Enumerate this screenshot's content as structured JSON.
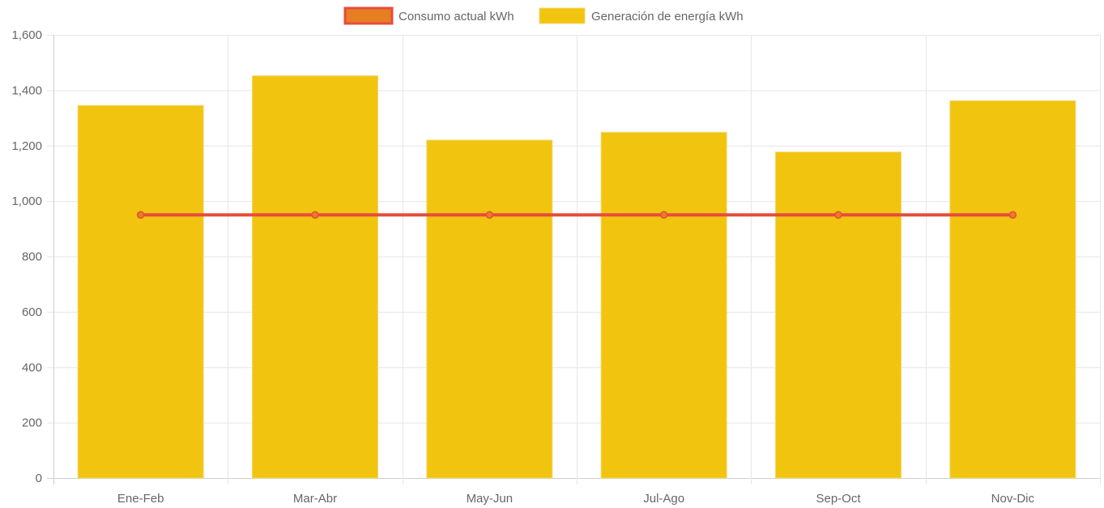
{
  "chart_data": {
    "type": "bar",
    "categories": [
      "Ene-Feb",
      "Mar-Abr",
      "May-Jun",
      "Jul-Ago",
      "Sep-Oct",
      "Nov-Dic"
    ],
    "series": [
      {
        "name": "Consumo actual kWh",
        "type": "line",
        "values": [
          950,
          950,
          950,
          950,
          950,
          950
        ],
        "color": "#e74c3c",
        "fill_color": "#e67e22"
      },
      {
        "name": "Generación de energía kWh",
        "type": "bar",
        "values": [
          1345,
          1452,
          1220,
          1248,
          1177,
          1362
        ],
        "color": "#f1c40f"
      }
    ],
    "ylim": [
      0,
      1600
    ],
    "yticks": [
      0,
      200,
      400,
      600,
      800,
      1000,
      1200,
      1400,
      1600
    ],
    "ytick_labels": [
      "0",
      "200",
      "400",
      "600",
      "800",
      "1,000",
      "1,200",
      "1,400",
      "1,600"
    ],
    "legend_position": "top-center",
    "grid": true
  }
}
